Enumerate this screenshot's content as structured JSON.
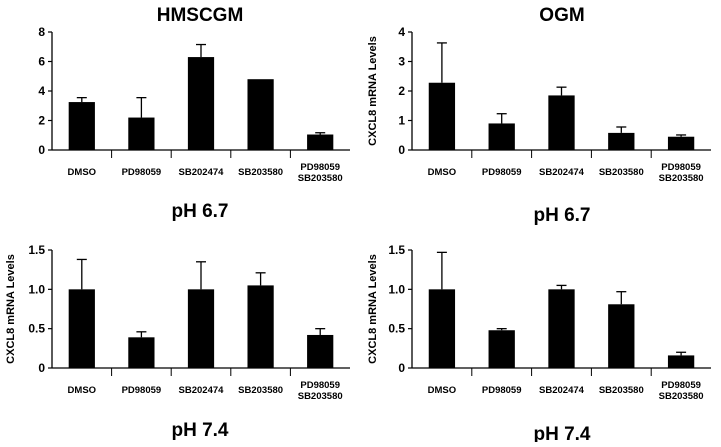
{
  "titles": {
    "left": "HMSCGM",
    "right": "OGM"
  },
  "chart_data": [
    {
      "type": "bar",
      "id": "hmscgm-ph67",
      "subtitle": "pH 6.7",
      "ylabel": "",
      "categories": [
        "DMSO",
        "PD98059",
        "SB202474",
        "SB203580",
        "PD98059\nSB203580"
      ],
      "values": [
        3.25,
        2.2,
        6.3,
        4.8,
        1.05
      ],
      "errors": [
        0.3,
        1.35,
        0.85,
        0,
        0.12
      ],
      "ylim": [
        0,
        8
      ],
      "yticks": [
        0,
        2,
        4,
        6,
        8
      ],
      "yticklabels": [
        "0",
        "2",
        "4",
        "6",
        "8"
      ]
    },
    {
      "type": "bar",
      "id": "ogm-ph67",
      "subtitle": "pH 6.7",
      "ylabel": "CXCL8 mRNA Levels",
      "categories": [
        "DMSO",
        "PD98059",
        "SB202474",
        "SB203580",
        "PD98059\nSB203580"
      ],
      "values": [
        2.28,
        0.9,
        1.85,
        0.58,
        0.45
      ],
      "errors": [
        1.35,
        0.33,
        0.28,
        0.2,
        0.06
      ],
      "ylim": [
        0,
        4
      ],
      "yticks": [
        0,
        1,
        2,
        3,
        4
      ],
      "yticklabels": [
        "0",
        "1",
        "2",
        "3",
        "4"
      ]
    },
    {
      "type": "bar",
      "id": "hmscgm-ph74",
      "subtitle": "pH 7.4",
      "ylabel": "CXCL8 mRNA Levels",
      "categories": [
        "DMSO",
        "PD98059",
        "SB202474",
        "SB203580",
        "PD98059\nSB203580"
      ],
      "values": [
        1.0,
        0.39,
        1.0,
        1.05,
        0.42
      ],
      "errors": [
        0.38,
        0.07,
        0.35,
        0.16,
        0.08
      ],
      "ylim": [
        0,
        1.5
      ],
      "yticks": [
        0,
        0.5,
        1.0,
        1.5
      ],
      "yticklabels": [
        "0",
        "0.5",
        "1.0",
        "1.5"
      ]
    },
    {
      "type": "bar",
      "id": "ogm-ph74",
      "subtitle": "pH 7.4",
      "ylabel": "CXCL8 mRNA Levels",
      "categories": [
        "DMSO",
        "PD98059",
        "SB202474",
        "SB203580",
        "PD98059\nSB203580"
      ],
      "values": [
        1.0,
        0.48,
        1.0,
        0.81,
        0.16
      ],
      "errors": [
        0.47,
        0.02,
        0.05,
        0.16,
        0.04
      ],
      "ylim": [
        0,
        1.5
      ],
      "yticks": [
        0,
        0.5,
        1.0,
        1.5
      ],
      "yticklabels": [
        "0",
        "0.5",
        "1.0",
        "1.5"
      ]
    }
  ]
}
